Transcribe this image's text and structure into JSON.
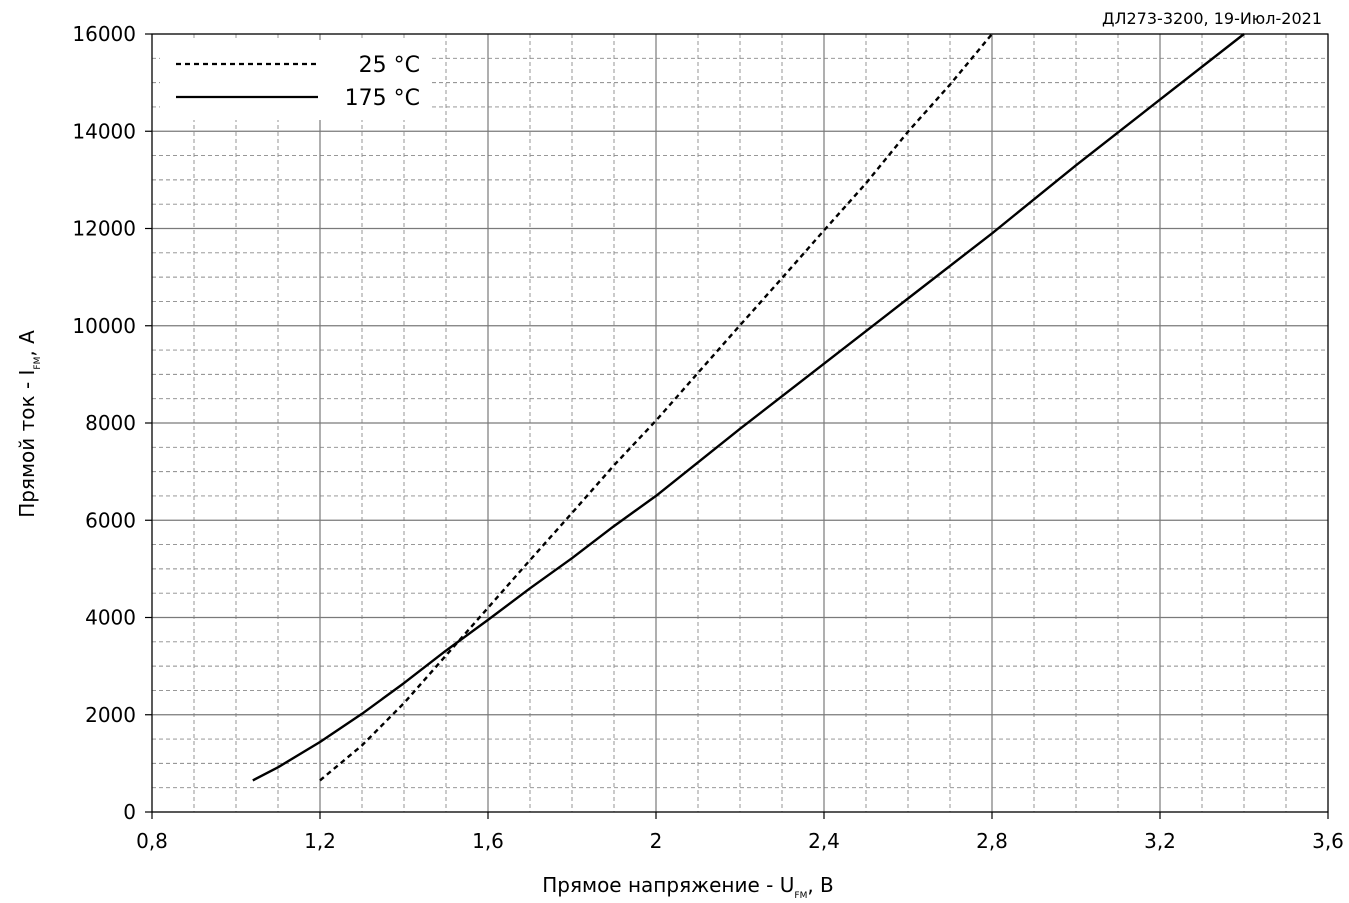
{
  "chart_data": {
    "type": "line",
    "annotation": "ДЛ273-3200, 19-Июл-2021",
    "xlabel": {
      "main": "Прямое напряжение - U",
      "sub": "FM",
      "unit": ", В"
    },
    "ylabel": {
      "main": "Прямой ток - I",
      "sub": "FM",
      "unit": ", А"
    },
    "xlim": [
      0.8,
      3.6
    ],
    "ylim": [
      0,
      16000
    ],
    "x_ticks": [
      "0,8",
      "1,2",
      "1,6",
      "2",
      "2,4",
      "2,8",
      "3,2",
      "3,6"
    ],
    "x_tick_values": [
      0.8,
      1.2,
      1.6,
      2.0,
      2.4,
      2.8,
      3.2,
      3.6
    ],
    "y_ticks": [
      "0",
      "2000",
      "4000",
      "6000",
      "8000",
      "10000",
      "12000",
      "14000",
      "16000"
    ],
    "y_tick_values": [
      0,
      2000,
      4000,
      6000,
      8000,
      10000,
      12000,
      14000,
      16000
    ],
    "x_minor_step": 0.1,
    "y_minor_step": 500,
    "grid": true,
    "legend_position": "top-left",
    "series": [
      {
        "name": "25 °C",
        "style": "dashed",
        "color": "#000000",
        "x": [
          1.2,
          1.3,
          1.4,
          1.5,
          1.6,
          1.7,
          1.8,
          1.9,
          2.0,
          2.1,
          2.2,
          2.3,
          2.4,
          2.5,
          2.6,
          2.7,
          2.8
        ],
        "y": [
          650,
          1370,
          2240,
          3220,
          4200,
          5180,
          6150,
          7130,
          8050,
          9030,
          10010,
          10980,
          11960,
          12930,
          13990,
          14960,
          16000
        ]
      },
      {
        "name": "175 °C",
        "style": "solid",
        "color": "#000000",
        "x": [
          1.04,
          1.1,
          1.2,
          1.3,
          1.4,
          1.5,
          1.6,
          1.7,
          1.8,
          1.9,
          2.0,
          2.2,
          2.4,
          2.6,
          2.8,
          3.0,
          3.2,
          3.4
        ],
        "y": [
          650,
          920,
          1440,
          2020,
          2650,
          3320,
          3950,
          4600,
          5220,
          5880,
          6500,
          7880,
          9220,
          10560,
          11900,
          13300,
          14650,
          16000
        ]
      }
    ]
  }
}
